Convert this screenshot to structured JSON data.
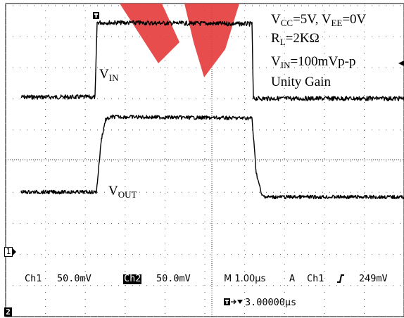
{
  "scope": {
    "settings_box": {
      "vcc_vee": {
        "v1": "V",
        "s1": "CC",
        "t1": "=5V, V",
        "s2": "EE",
        "t2": "=0V"
      },
      "rl": {
        "v": "R",
        "s": "L",
        "t": "=2KΩ"
      },
      "vin": {
        "v": "V",
        "s": "IN",
        "t": "=100mVp-p"
      },
      "gain": "Unity Gain"
    },
    "labels": {
      "vin": {
        "v": "V",
        "s": "IN"
      },
      "vout": {
        "v": "V",
        "s": "OUT"
      }
    },
    "channel_markers": {
      "ch1": "1",
      "ch2": "2"
    },
    "status_bar": {
      "ch1": "Ch1",
      "ch1_scale": "50.0mV",
      "ch2": "Ch2",
      "ch2_scale": "50.0mV",
      "timebase": "M 1.00µs",
      "trigger_mode": "A",
      "trigger_source": "Ch1",
      "trigger_slope_icon": "rising-edge-icon",
      "trigger_level": "249mV",
      "trigger_position": "3.00000µs"
    },
    "traces": [
      {
        "name": "V_IN",
        "color": "#000000"
      },
      {
        "name": "V_OUT",
        "color": "#000000"
      }
    ],
    "watermark_color": "#e53a3a"
  }
}
